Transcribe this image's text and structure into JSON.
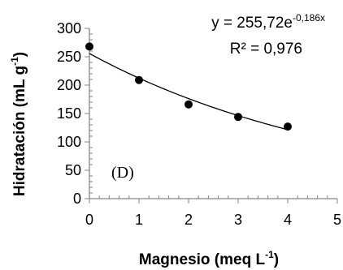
{
  "chart_data": {
    "type": "scatter",
    "x": [
      0,
      1,
      2,
      3,
      4
    ],
    "y": [
      268,
      209,
      166,
      144,
      127
    ],
    "xlim": [
      0,
      5
    ],
    "ylim": [
      0,
      300
    ],
    "xticks": [
      0,
      1,
      2,
      3,
      4,
      5
    ],
    "yticks": [
      0,
      50,
      100,
      150,
      200,
      250,
      300
    ],
    "xlabel": {
      "main": "Magnesio (meq L",
      "sup": "-1",
      "close": ")"
    },
    "ylabel": {
      "main": "Hidratación (mL g",
      "sup": "-1",
      "close": ")"
    },
    "trendline": {
      "type": "exponential",
      "a": 255.72,
      "b": -0.186,
      "equation_prefix": "y = 255,72e",
      "equation_exponent": "-0,186x",
      "r2_text": "R² = 0,976"
    },
    "panel_label": "(D)",
    "grid": false,
    "marker_color": "#000000",
    "line_color": "#000000"
  }
}
